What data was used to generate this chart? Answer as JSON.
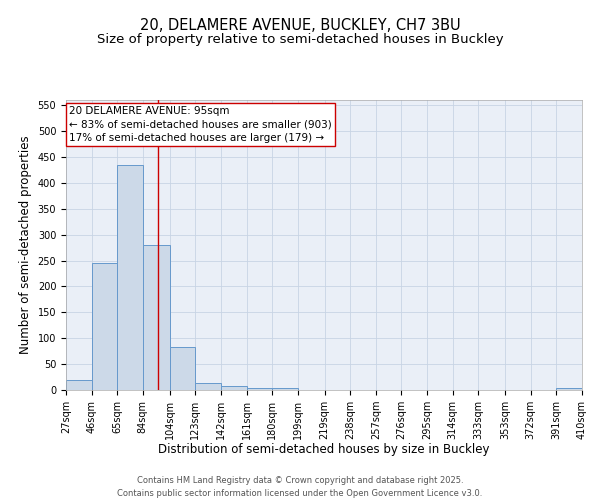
{
  "title_line1": "20, DELAMERE AVENUE, BUCKLEY, CH7 3BU",
  "title_line2": "Size of property relative to semi-detached houses in Buckley",
  "xlabel": "Distribution of semi-detached houses by size in Buckley",
  "ylabel": "Number of semi-detached properties",
  "bar_left_edges": [
    27,
    46,
    65,
    84,
    104,
    123,
    142,
    161,
    180,
    199,
    219,
    238,
    257,
    276,
    295,
    314,
    333,
    353,
    372,
    391
  ],
  "bar_widths": [
    19,
    19,
    19,
    20,
    19,
    19,
    19,
    19,
    19,
    20,
    19,
    19,
    19,
    19,
    19,
    19,
    20,
    19,
    19,
    19
  ],
  "bar_heights": [
    20,
    245,
    435,
    280,
    83,
    13,
    8,
    3,
    3,
    0,
    0,
    0,
    0,
    0,
    0,
    0,
    0,
    0,
    0,
    3
  ],
  "bar_color": "#ccd9e8",
  "bar_edge_color": "#6699cc",
  "property_line_x": 95,
  "property_line_color": "#cc0000",
  "annotation_text": "20 DELAMERE AVENUE: 95sqm\n← 83% of semi-detached houses are smaller (903)\n17% of semi-detached houses are larger (179) →",
  "annotation_box_color": "#ffffff",
  "annotation_box_edge_color": "#cc0000",
  "tick_labels": [
    "27sqm",
    "46sqm",
    "65sqm",
    "84sqm",
    "104sqm",
    "123sqm",
    "142sqm",
    "161sqm",
    "180sqm",
    "199sqm",
    "219sqm",
    "238sqm",
    "257sqm",
    "276sqm",
    "295sqm",
    "314sqm",
    "333sqm",
    "353sqm",
    "372sqm",
    "391sqm",
    "410sqm"
  ],
  "ylim": [
    0,
    560
  ],
  "yticks": [
    0,
    50,
    100,
    150,
    200,
    250,
    300,
    350,
    400,
    450,
    500,
    550
  ],
  "grid_color": "#c8d4e4",
  "bg_color": "#eaeff7",
  "footer_text": "Contains HM Land Registry data © Crown copyright and database right 2025.\nContains public sector information licensed under the Open Government Licence v3.0.",
  "title_fontsize": 10.5,
  "subtitle_fontsize": 9.5,
  "label_fontsize": 8.5,
  "tick_fontsize": 7,
  "annotation_fontsize": 7.5,
  "footer_fontsize": 6
}
